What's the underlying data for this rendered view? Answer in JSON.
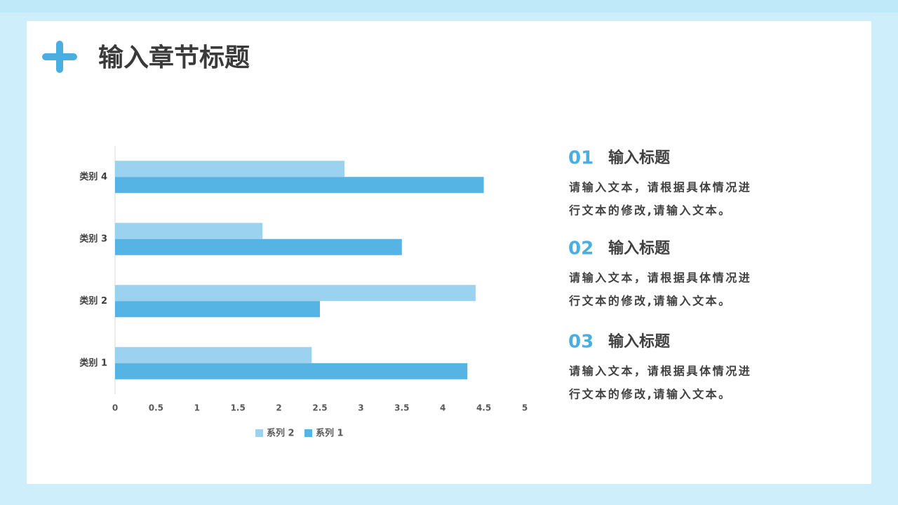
{
  "header": {
    "title": "输入章节标题"
  },
  "chart_data": {
    "type": "barh",
    "categories": [
      "类别 1",
      "类别 2",
      "类别 3",
      "类别 4"
    ],
    "series": [
      {
        "name": "系列 1",
        "color": "#56b4e4",
        "values": [
          4.3,
          2.5,
          3.5,
          4.5
        ]
      },
      {
        "name": "系列 2",
        "color": "#9ad2ef",
        "values": [
          2.4,
          4.4,
          1.8,
          2.8
        ]
      }
    ],
    "xlim": [
      0,
      5
    ],
    "xticks": [
      0,
      0.5,
      1,
      1.5,
      2,
      2.5,
      3,
      3.5,
      4,
      4.5,
      5
    ],
    "legend": "bottom"
  },
  "items": [
    {
      "number": "01",
      "title": "输入标题",
      "lines": [
        "请输入文本，请根据具体情况进",
        "行文本的修改,请输入文本。"
      ]
    },
    {
      "number": "02",
      "title": "输入标题",
      "lines": [
        "请输入文本，请根据具体情况进",
        "行文本的修改,请输入文本。"
      ]
    },
    {
      "number": "03",
      "title": "输入标题",
      "lines": [
        "请输入文本，请根据具体情况进",
        "行文本的修改,请输入文本。"
      ]
    }
  ]
}
